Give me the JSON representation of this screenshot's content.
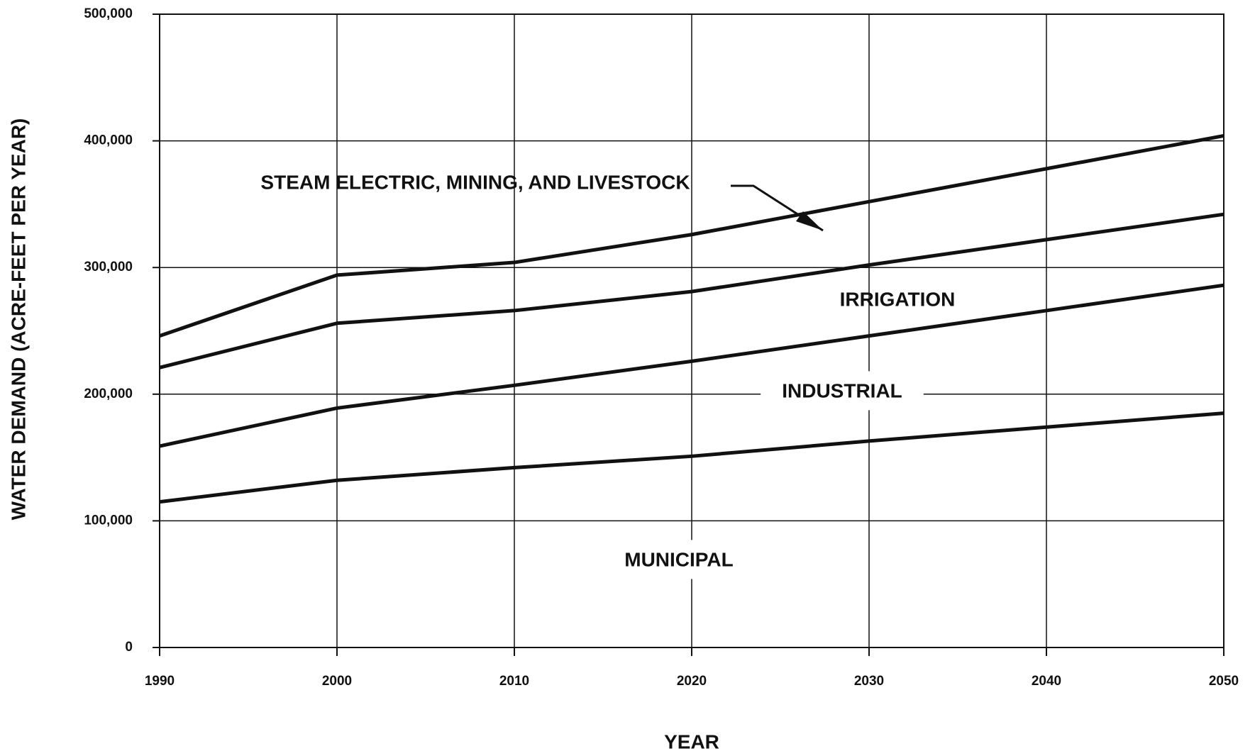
{
  "chart_data": {
    "type": "line",
    "stacked": true,
    "xlabel": "YEAR",
    "ylabel": "WATER DEMAND (ACRE-FEET PER YEAR)",
    "x": [
      1990,
      2000,
      2010,
      2020,
      2030,
      2040,
      2050
    ],
    "series": [
      {
        "name": "MUNICIPAL",
        "color": "#111111",
        "values": [
          115000,
          132000,
          142000,
          151000,
          163000,
          174000,
          185000
        ]
      },
      {
        "name": "INDUSTRIAL",
        "color": "#111111",
        "values": [
          44000,
          57000,
          65000,
          75000,
          83000,
          92000,
          101000
        ]
      },
      {
        "name": "IRRIGATION",
        "color": "#111111",
        "values": [
          62000,
          67000,
          59000,
          55000,
          56000,
          56000,
          56000
        ]
      },
      {
        "name": "STEAM ELECTRIC, MINING, AND LIVESTOCK",
        "color": "#111111",
        "values": [
          25000,
          38000,
          38000,
          45000,
          50000,
          56000,
          62000
        ]
      }
    ],
    "xlim": [
      1990,
      2050
    ],
    "xticks": [
      1990,
      2000,
      2010,
      2020,
      2030,
      2040,
      2050
    ],
    "ylim": [
      0,
      500000
    ],
    "yticks": [
      0,
      {
        "value": 100000,
        "label": "100,000"
      },
      {
        "value": 200000,
        "label": "200,000"
      },
      {
        "value": 300000,
        "label": "300,000"
      },
      {
        "value": 400000,
        "label": "400,000"
      },
      {
        "value": 500000,
        "label": "500,000"
      }
    ],
    "grid": true
  }
}
